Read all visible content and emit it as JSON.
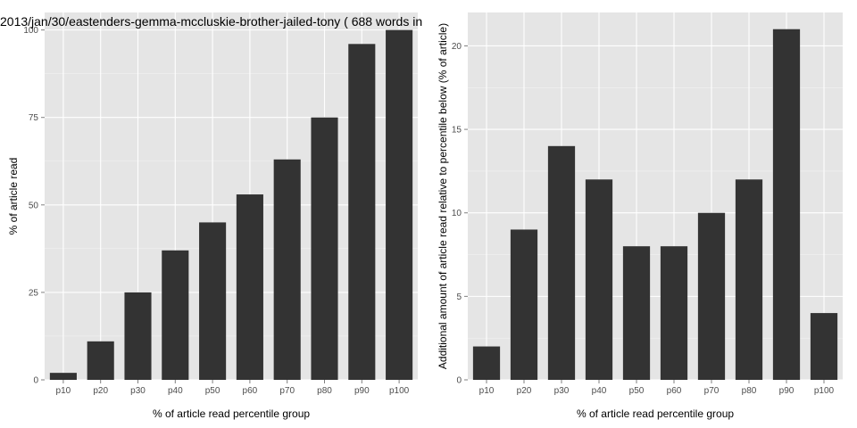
{
  "title": "2013/jan/30/eastenders-gemma-mccluskie-brother-jailed-tony ( 688 words in",
  "colors": {
    "panel": "#e5e5e5",
    "grid_major": "#ffffff",
    "grid_minor": "#f2f2f2",
    "bar": "#333333"
  },
  "chart_data": [
    {
      "type": "bar",
      "categories": [
        "p10",
        "p20",
        "p30",
        "p40",
        "p50",
        "p60",
        "p70",
        "p80",
        "p90",
        "p100"
      ],
      "values": [
        2,
        11,
        25,
        37,
        45,
        53,
        63,
        75,
        96,
        100
      ],
      "xlabel": "% of article read percentile group",
      "ylabel": "% of article read",
      "ylim": [
        0,
        105
      ],
      "yticks": [
        0,
        25,
        50,
        75,
        100
      ],
      "grid": true
    },
    {
      "type": "bar",
      "categories": [
        "p10",
        "p20",
        "p30",
        "p40",
        "p50",
        "p60",
        "p70",
        "p80",
        "p90",
        "p100"
      ],
      "values": [
        2,
        9,
        14,
        12,
        8,
        8,
        10,
        12,
        21,
        4
      ],
      "xlabel": "% of article read percentile group",
      "ylabel": "Additional amount of article read relative to percentile below (% of article)",
      "ylim": [
        0,
        22
      ],
      "yticks": [
        0,
        5,
        10,
        15,
        20
      ],
      "grid": true
    }
  ]
}
